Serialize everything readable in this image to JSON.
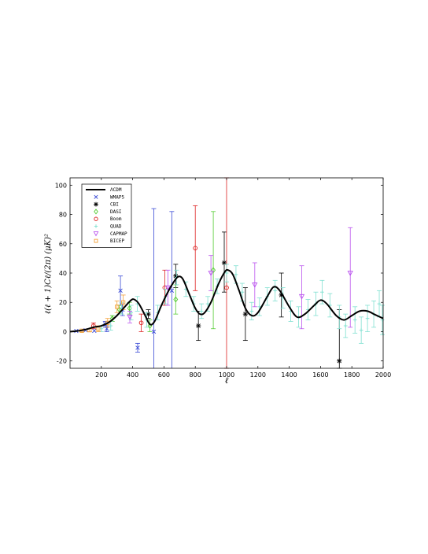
{
  "chart_data": {
    "type": "scatter",
    "xlabel": "ℓ",
    "ylabel": "ℓ(ℓ + 1)Cℓ/(2π) (μK)²",
    "xlim": [
      0,
      2000
    ],
    "ylim": [
      -25,
      105
    ],
    "x_ticks": [
      200,
      400,
      600,
      800,
      1000,
      1200,
      1400,
      1600,
      1800,
      2000
    ],
    "y_ticks": [
      -20,
      0,
      20,
      40,
      60,
      80,
      100
    ],
    "legend_position": "top-left",
    "model": {
      "name": "ΛCDM",
      "color": "#000000",
      "points": [
        [
          2,
          0
        ],
        [
          50,
          0.5
        ],
        [
          100,
          1.5
        ],
        [
          150,
          3
        ],
        [
          200,
          4
        ],
        [
          250,
          6.5
        ],
        [
          300,
          11
        ],
        [
          350,
          17
        ],
        [
          390,
          21.5
        ],
        [
          410,
          22
        ],
        [
          440,
          19
        ],
        [
          480,
          11
        ],
        [
          510,
          5
        ],
        [
          540,
          7
        ],
        [
          580,
          17
        ],
        [
          620,
          26
        ],
        [
          660,
          33.5
        ],
        [
          690,
          37.5
        ],
        [
          720,
          36
        ],
        [
          760,
          26
        ],
        [
          800,
          16
        ],
        [
          830,
          12
        ],
        [
          860,
          13
        ],
        [
          900,
          20
        ],
        [
          950,
          33
        ],
        [
          990,
          41
        ],
        [
          1010,
          42
        ],
        [
          1040,
          39
        ],
        [
          1080,
          28
        ],
        [
          1120,
          16
        ],
        [
          1160,
          11
        ],
        [
          1200,
          13
        ],
        [
          1260,
          24
        ],
        [
          1300,
          30.5
        ],
        [
          1340,
          28
        ],
        [
          1400,
          17
        ],
        [
          1450,
          10
        ],
        [
          1500,
          12
        ],
        [
          1560,
          18
        ],
        [
          1600,
          21.5
        ],
        [
          1640,
          19
        ],
        [
          1700,
          11
        ],
        [
          1750,
          8
        ],
        [
          1800,
          11
        ],
        [
          1850,
          14
        ],
        [
          1900,
          14
        ],
        [
          1950,
          11.5
        ],
        [
          2000,
          9
        ]
      ]
    },
    "series": [
      {
        "name": "WMAP5",
        "marker": "x",
        "color": "#3b4bd6",
        "points": [
          [
            40,
            0.5
          ],
          [
            100,
            1
          ],
          [
            155,
            0.6
          ],
          [
            225,
            5
          ],
          [
            235,
            2
          ],
          [
            322,
            28
          ],
          [
            335,
            15
          ],
          [
            432,
            -11
          ],
          [
            535,
            0
          ],
          [
            650,
            28
          ]
        ],
        "errors": [
          [
            40,
            0,
            0
          ],
          [
            100,
            0,
            0
          ],
          [
            155,
            0,
            0
          ],
          [
            225,
            2,
            2
          ],
          [
            235,
            2,
            2
          ],
          [
            322,
            10,
            10
          ],
          [
            335,
            4,
            4
          ],
          [
            432,
            3,
            3
          ],
          [
            535,
            84,
            -1
          ],
          [
            650,
            54,
            -1
          ]
        ]
      },
      {
        "name": "CBI",
        "marker": "*",
        "color": "#000000",
        "points": [
          [
            500,
            12
          ],
          [
            675,
            38
          ],
          [
            820,
            4
          ],
          [
            985,
            47
          ],
          [
            1120,
            12
          ],
          [
            1350,
            25
          ],
          [
            1720,
            -20
          ]
        ],
        "errors": [
          [
            500,
            3,
            3
          ],
          [
            675,
            8,
            8
          ],
          [
            820,
            10,
            10
          ],
          [
            985,
            21,
            20
          ],
          [
            1120,
            18,
            18
          ],
          [
            1350,
            15,
            15
          ],
          [
            1720,
            35,
            35
          ]
        ]
      },
      {
        "name": "DASI",
        "marker": "diamond",
        "color": "#55cc33",
        "points": [
          [
            270,
            9
          ],
          [
            315,
            15
          ],
          [
            380,
            16
          ],
          [
            510,
            4
          ],
          [
            675,
            22
          ],
          [
            915,
            42
          ]
        ],
        "errors": [
          [
            270,
            2,
            2
          ],
          [
            315,
            3,
            3
          ],
          [
            380,
            4,
            4
          ],
          [
            510,
            4,
            4
          ],
          [
            675,
            10,
            10
          ],
          [
            915,
            40,
            40
          ]
        ]
      },
      {
        "name": "Boom",
        "marker": "o",
        "color": "#dd2222",
        "points": [
          [
            150,
            4
          ],
          [
            455,
            6
          ],
          [
            605,
            30
          ],
          [
            800,
            57
          ],
          [
            1000,
            30
          ]
        ],
        "errors": [
          [
            150,
            2,
            2
          ],
          [
            455,
            6,
            6
          ],
          [
            605,
            12,
            12
          ],
          [
            800,
            29,
            29
          ],
          [
            1000,
            76,
            55
          ]
        ]
      },
      {
        "name": "QUAD",
        "marker": "+",
        "color": "#7fe0d0",
        "points": [
          [
            200,
            2
          ],
          [
            260,
            4
          ],
          [
            330,
            16
          ],
          [
            390,
            13
          ],
          [
            430,
            19
          ],
          [
            490,
            8
          ],
          [
            560,
            13
          ],
          [
            610,
            24
          ],
          [
            680,
            37
          ],
          [
            740,
            29
          ],
          [
            790,
            19
          ],
          [
            840,
            14
          ],
          [
            880,
            19
          ],
          [
            940,
            31
          ],
          [
            1000,
            40
          ],
          [
            1060,
            39
          ],
          [
            1100,
            27
          ],
          [
            1160,
            14
          ],
          [
            1210,
            17
          ],
          [
            1260,
            24
          ],
          [
            1310,
            28
          ],
          [
            1360,
            23
          ],
          [
            1410,
            14
          ],
          [
            1460,
            10
          ],
          [
            1520,
            15
          ],
          [
            1570,
            19
          ],
          [
            1610,
            27
          ],
          [
            1660,
            18
          ],
          [
            1720,
            10
          ],
          [
            1760,
            4
          ],
          [
            1820,
            8
          ],
          [
            1860,
            1
          ],
          [
            1900,
            9
          ],
          [
            1940,
            12
          ],
          [
            1975,
            19
          ],
          [
            1995,
            8
          ]
        ],
        "errors": [
          [
            200,
            2,
            2
          ],
          [
            260,
            3,
            3
          ],
          [
            330,
            4,
            4
          ],
          [
            390,
            5,
            5
          ],
          [
            430,
            5,
            5
          ],
          [
            490,
            5,
            5
          ],
          [
            560,
            5,
            5
          ],
          [
            610,
            5,
            5
          ],
          [
            680,
            5,
            5
          ],
          [
            740,
            5,
            5
          ],
          [
            790,
            5,
            5
          ],
          [
            840,
            5,
            5
          ],
          [
            880,
            5,
            5
          ],
          [
            940,
            5,
            5
          ],
          [
            1000,
            6,
            6
          ],
          [
            1060,
            6,
            6
          ],
          [
            1100,
            6,
            6
          ],
          [
            1160,
            6,
            6
          ],
          [
            1210,
            6,
            6
          ],
          [
            1260,
            6,
            6
          ],
          [
            1310,
            7,
            7
          ],
          [
            1360,
            7,
            7
          ],
          [
            1410,
            7,
            7
          ],
          [
            1460,
            7,
            7
          ],
          [
            1520,
            7,
            7
          ],
          [
            1570,
            8,
            8
          ],
          [
            1610,
            8,
            8
          ],
          [
            1660,
            8,
            8
          ],
          [
            1720,
            8,
            8
          ],
          [
            1760,
            8,
            8
          ],
          [
            1820,
            9,
            9
          ],
          [
            1860,
            9,
            9
          ],
          [
            1900,
            9,
            9
          ],
          [
            1940,
            9,
            9
          ],
          [
            1975,
            9,
            9
          ],
          [
            1995,
            10,
            10
          ]
        ]
      },
      {
        "name": "CAPMAP",
        "marker": "triangle-down",
        "color": "#bb55ee",
        "points": [
          [
            382,
            10
          ],
          [
            625,
            30
          ],
          [
            900,
            40
          ],
          [
            1180,
            32
          ],
          [
            1480,
            24
          ],
          [
            1790,
            40
          ]
        ],
        "errors": [
          [
            382,
            4,
            4
          ],
          [
            625,
            12,
            12
          ],
          [
            900,
            12,
            12
          ],
          [
            1180,
            15,
            15
          ],
          [
            1480,
            21,
            22
          ],
          [
            1790,
            31,
            37
          ]
        ]
      },
      {
        "name": "BICEP",
        "marker": "square",
        "color": "#f4a23a",
        "points": [
          [
            75,
            0.6
          ],
          [
            125,
            1
          ],
          [
            180,
            2
          ],
          [
            240,
            6
          ],
          [
            300,
            17
          ],
          [
            340,
            20
          ]
        ],
        "errors": [
          [
            75,
            0.5,
            0.5
          ],
          [
            125,
            1,
            1
          ],
          [
            180,
            2,
            2
          ],
          [
            240,
            3,
            3
          ],
          [
            300,
            4,
            4
          ],
          [
            340,
            5,
            5
          ]
        ]
      }
    ]
  }
}
